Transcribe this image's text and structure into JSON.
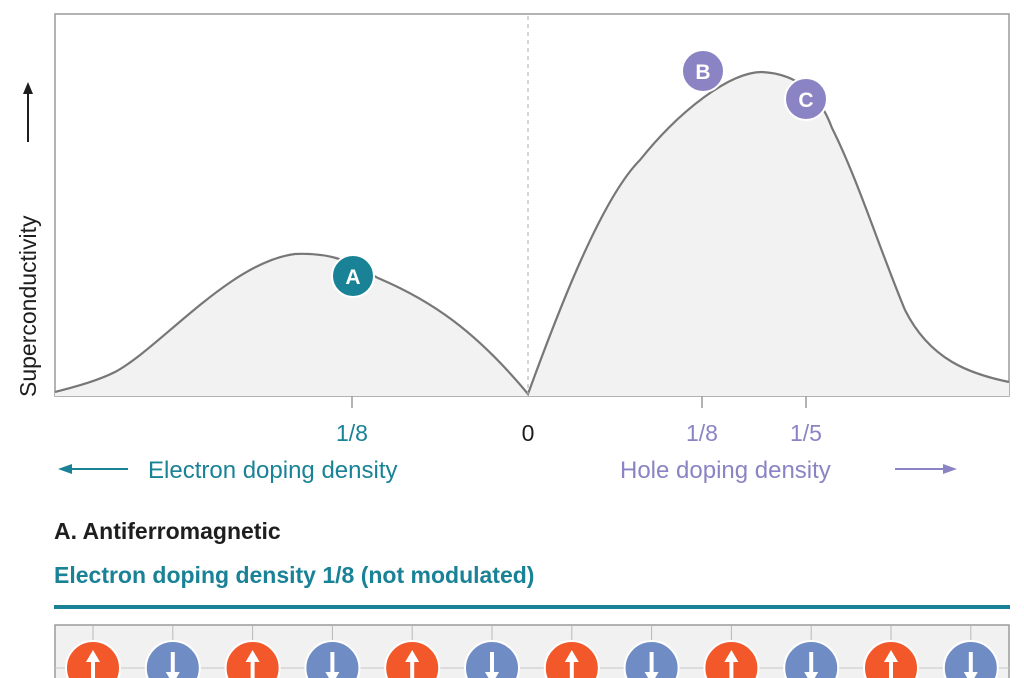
{
  "diagram": {
    "y_axis_label": "Superconductivity",
    "zero_label": "0",
    "electron_side": {
      "tick_label": "1/8",
      "axis_label": "Electron doping density",
      "color": "#1a8296"
    },
    "hole_side": {
      "tick_labels": [
        "1/8",
        "1/5"
      ],
      "axis_label": "Hole doping density",
      "color": "#8a84c4"
    },
    "markers": [
      {
        "label": "A",
        "color": "#1a8296"
      },
      {
        "label": "B",
        "color": "#8a84c4"
      },
      {
        "label": "C",
        "color": "#8a84c4"
      }
    ],
    "curve_fill": "#f2f2f2",
    "curve_stroke": "#777777"
  },
  "panel": {
    "title": "A. Antiferromagnetic",
    "subtitle": "Electron doping density 1/8 (not modulated)",
    "spin_directions": [
      "up",
      "down",
      "up",
      "down",
      "up",
      "down",
      "up",
      "down",
      "up",
      "down",
      "up",
      "down"
    ],
    "up_color": "#f2582a",
    "down_color": "#6f8cc4"
  }
}
